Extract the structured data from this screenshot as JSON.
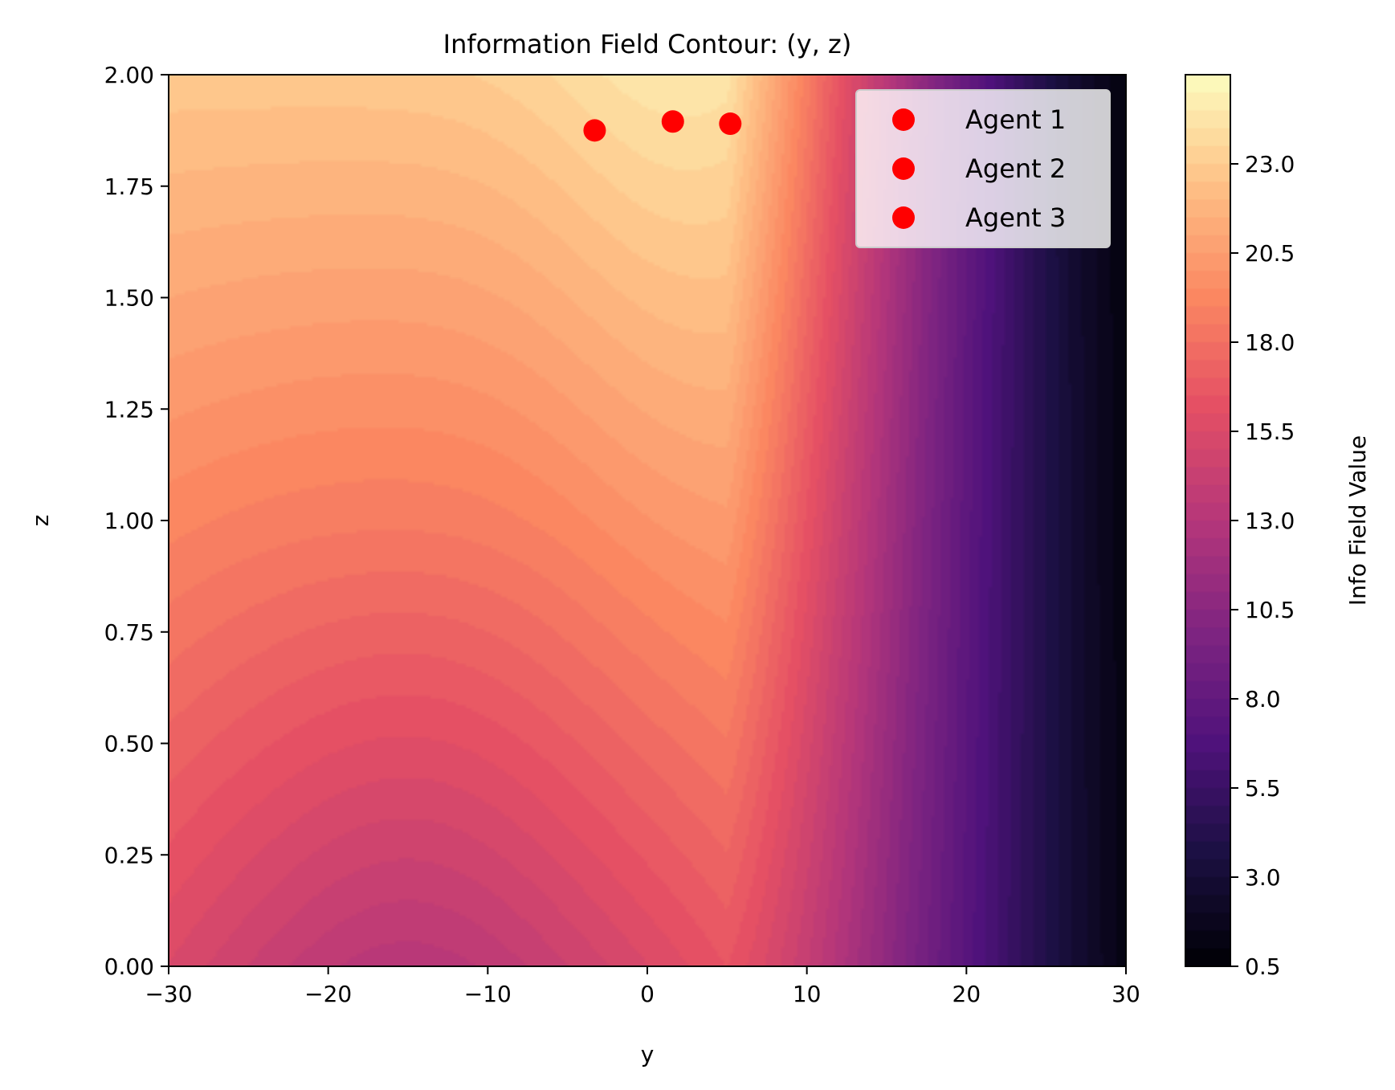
{
  "chart_data": {
    "type": "contour",
    "title": "Information Field Contour: (y, z)",
    "xlabel": "y",
    "ylabel": "z",
    "xlim": [
      -30,
      30
    ],
    "ylim": [
      0,
      2
    ],
    "x_ticks": [
      "−30",
      "−20",
      "−10",
      "0",
      "10",
      "20",
      "30"
    ],
    "x_tick_values": [
      -30,
      -20,
      -10,
      0,
      10,
      20,
      30
    ],
    "y_ticks": [
      "0.00",
      "0.25",
      "0.50",
      "0.75",
      "1.00",
      "1.25",
      "1.50",
      "1.75",
      "2.00"
    ],
    "y_tick_values": [
      0,
      0.25,
      0.5,
      0.75,
      1.0,
      1.25,
      1.5,
      1.75,
      2.0
    ],
    "colormap": "magma",
    "colorbar": {
      "label": "Info Field Value",
      "range": [
        0.5,
        25.5
      ],
      "ticks": [
        "0.5",
        "3.0",
        "5.5",
        "8.0",
        "10.5",
        "13.0",
        "15.5",
        "18.0",
        "20.5",
        "23.0"
      ],
      "tick_values": [
        0.5,
        3.0,
        5.5,
        8.0,
        10.5,
        13.0,
        15.5,
        18.0,
        20.5,
        23.0
      ],
      "levels": 50
    },
    "series": [
      {
        "name": "Agent 1",
        "color": "#ff0000",
        "x": -3.3,
        "y": 1.875
      },
      {
        "name": "Agent 2",
        "color": "#ff0000",
        "x": 1.6,
        "y": 1.895
      },
      {
        "name": "Agent 3",
        "color": "#ff0000",
        "x": 5.2,
        "y": 1.89
      }
    ],
    "legend_position": "top-right",
    "grid": false
  }
}
